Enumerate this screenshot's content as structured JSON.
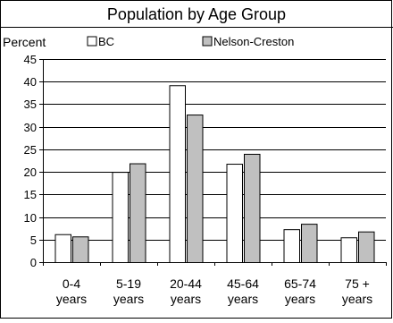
{
  "chart_data": {
    "type": "bar",
    "title": "Population by Age Group",
    "ylabel": "Percent",
    "xlabel": "",
    "categories": [
      [
        "0-4",
        "years"
      ],
      [
        "5-19",
        "years"
      ],
      [
        "20-44",
        "years"
      ],
      [
        "45-64",
        "years"
      ],
      [
        "65-74",
        "years"
      ],
      [
        "75 +",
        "years"
      ]
    ],
    "series": [
      {
        "name": "BC",
        "color": "#ffffff",
        "values": [
          6.2,
          20,
          39.2,
          21.8,
          7.3,
          5.5
        ]
      },
      {
        "name": "Nelson-Creston",
        "color": "#c0c0c0",
        "values": [
          5.7,
          21.9,
          32.7,
          24,
          8.5,
          6.8
        ]
      }
    ],
    "ylim": [
      0,
      45
    ],
    "yticks": [
      0,
      5,
      10,
      15,
      20,
      25,
      30,
      35,
      40,
      45
    ],
    "grid": true,
    "legend": "top"
  }
}
